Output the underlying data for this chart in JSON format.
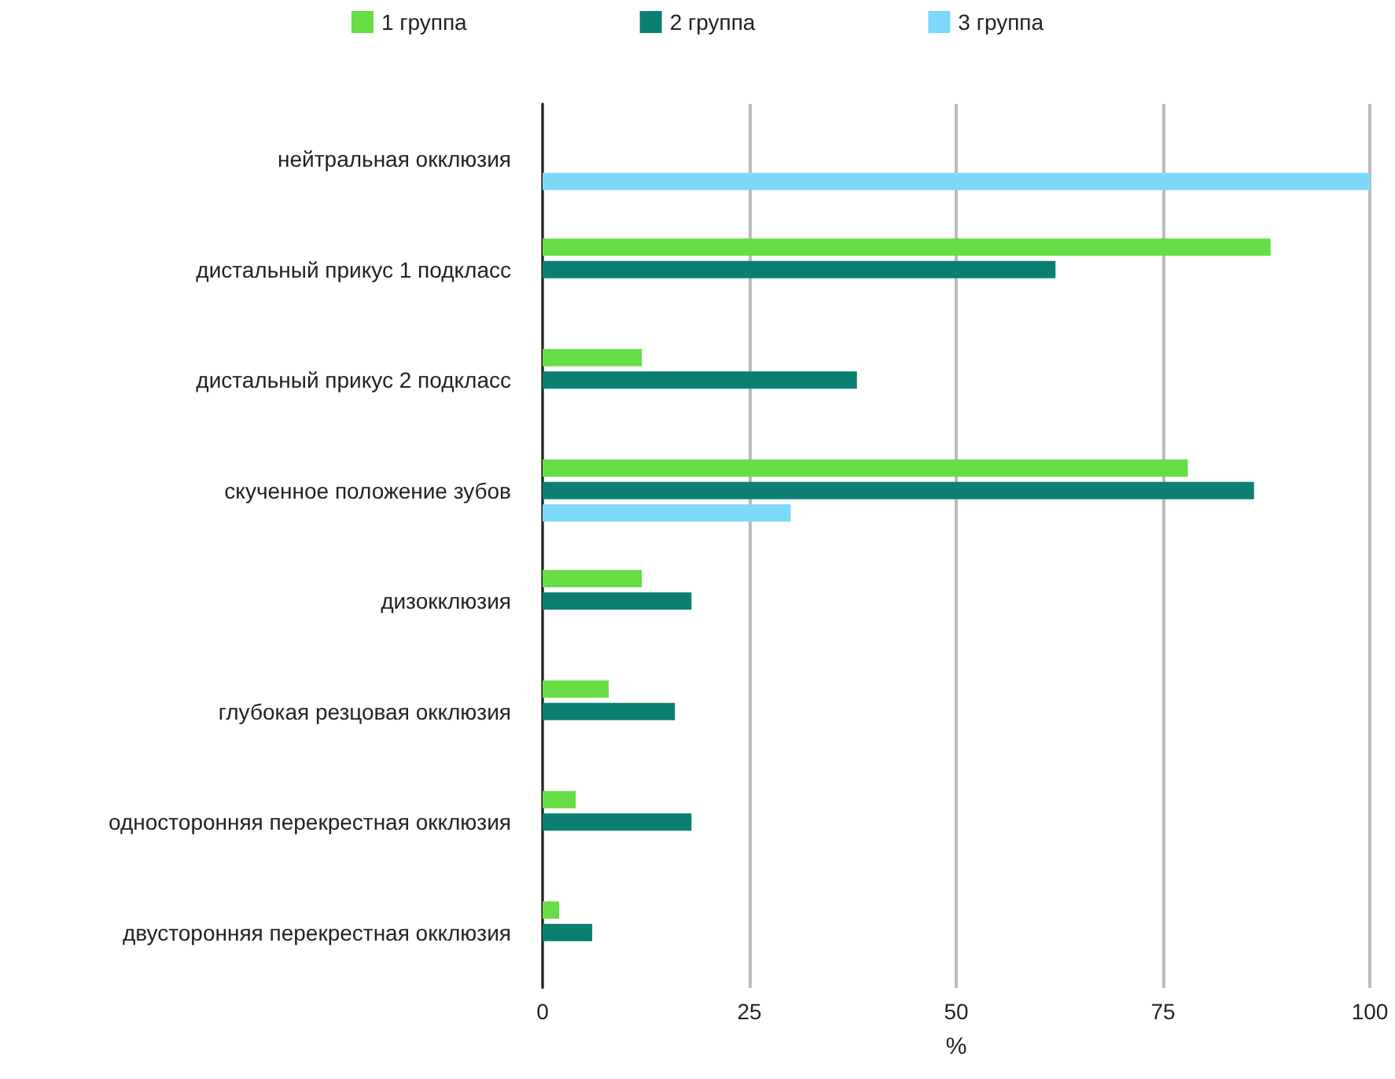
{
  "chart_data": {
    "type": "bar",
    "orientation": "horizontal",
    "xlabel": "%",
    "categories": [
      "нейтральная окклюзия",
      "дистальный прикус 1 подкласс",
      "дистальный прикус 2 подкласс",
      "скученное положение зубов",
      "дизокклюзия",
      "глубокая резцовая окклюзия",
      "односторонняя перекрестная окклюзия",
      "двусторонняя перекрестная окклюзия"
    ],
    "series": [
      {
        "name": "1 группа",
        "color": "#66dd44",
        "values": [
          null,
          88,
          12,
          78,
          12,
          8,
          4,
          2
        ]
      },
      {
        "name": "2 группа",
        "color": "#0a7f72",
        "values": [
          null,
          62,
          38,
          86,
          18,
          16,
          18,
          6
        ]
      },
      {
        "name": "3 группа",
        "color": "#7dd8fa",
        "values": [
          100,
          null,
          null,
          30,
          null,
          null,
          null,
          null
        ]
      }
    ],
    "xlim": [
      0,
      100
    ],
    "xticks": [
      0,
      25,
      50,
      75,
      100
    ],
    "grid": "x",
    "legend": "top"
  }
}
